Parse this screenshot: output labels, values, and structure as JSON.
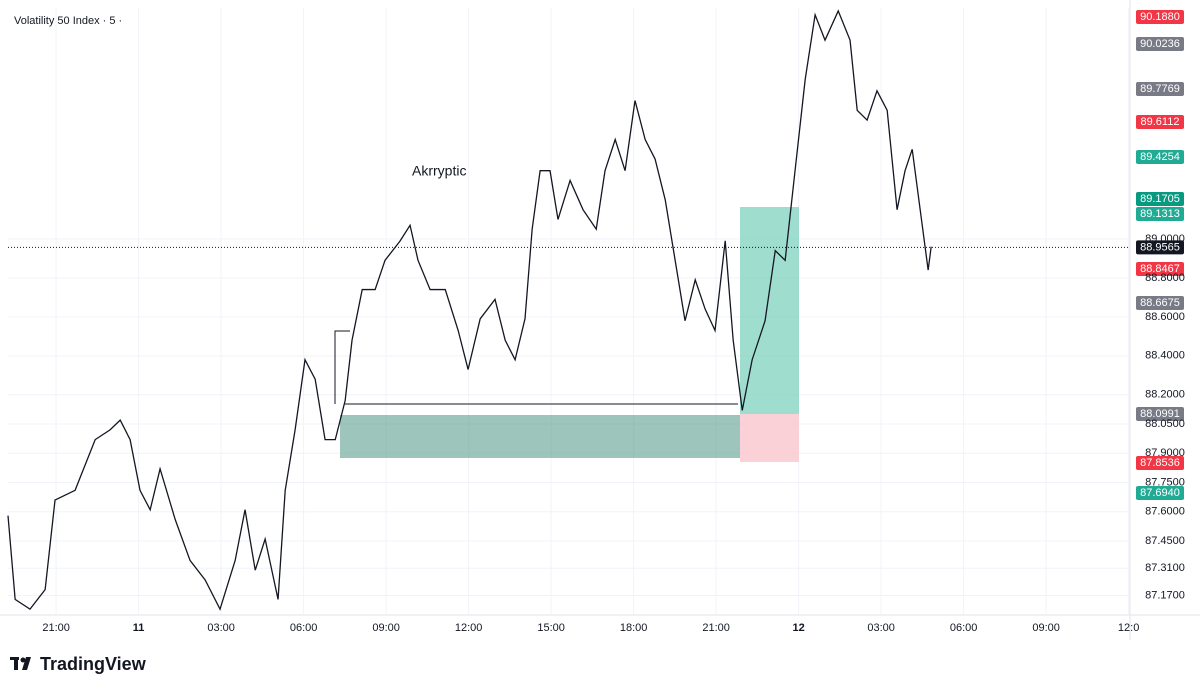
{
  "chart_data": {
    "type": "line",
    "title": "Volatility 50 Index · 5 ·",
    "annotation": "Akrryptic",
    "brand": "TradingView",
    "color": "#131722",
    "grid": true,
    "x": [
      -1.75,
      -1.49,
      -0.95,
      -0.4,
      -0.04,
      0.69,
      1.42,
      1.96,
      2.33,
      2.69,
      3.05,
      3.42,
      3.78,
      4.33,
      4.87,
      5.42,
      5.96,
      6.51,
      6.87,
      7.24,
      7.6,
      8.07,
      8.33,
      8.69,
      9.05,
      9.42,
      9.78,
      10.15,
      10.51,
      10.76,
      11.13,
      11.6,
      11.96,
      12.51,
      12.87,
      13.16,
      13.6,
      14.15,
      14.62,
      14.98,
      15.42,
      15.96,
      16.33,
      16.69,
      17.05,
      17.31,
      17.6,
      17.96,
      18.25,
      18.69,
      19.16,
      19.64,
      19.96,
      20.33,
      20.69,
      21.05,
      21.42,
      21.78,
      22.15,
      22.51,
      22.87,
      23.24,
      23.6,
      23.96,
      24.33,
      24.62,
      24.95,
      25.31,
      25.78,
      26.15,
      26.51,
      26.87,
      27.24,
      27.6,
      27.96,
      28.44,
      28.87,
      29.13,
      29.49,
      29.85,
      30.22,
      30.58,
      30.87,
      31.13,
      31.42,
      31.71,
      31.82
    ],
    "series": [
      {
        "name": "Volatility 50 Index",
        "color": "#131722",
        "values": [
          87.58,
          87.15,
          87.1,
          87.2,
          87.66,
          87.71,
          87.97,
          88.02,
          88.07,
          87.97,
          87.71,
          87.61,
          87.82,
          87.56,
          87.35,
          87.25,
          87.1,
          87.35,
          87.61,
          87.3,
          87.46,
          87.15,
          87.71,
          88.02,
          88.38,
          88.28,
          87.97,
          87.97,
          88.17,
          88.48,
          88.74,
          88.74,
          88.89,
          88.99,
          89.07,
          88.89,
          88.74,
          88.74,
          88.53,
          88.33,
          88.59,
          88.69,
          88.48,
          88.38,
          88.59,
          89.05,
          89.35,
          89.35,
          89.1,
          89.3,
          89.15,
          89.05,
          89.35,
          89.51,
          89.35,
          89.71,
          89.51,
          89.41,
          89.2,
          88.89,
          88.58,
          88.79,
          88.64,
          88.53,
          88.99,
          88.48,
          88.12,
          88.38,
          88.58,
          88.94,
          88.89,
          89.35,
          89.82,
          90.15,
          90.02,
          90.17,
          90.02,
          89.66,
          89.61,
          89.76,
          89.66,
          89.15,
          89.35,
          89.46,
          89.15,
          88.84,
          88.96
        ]
      }
    ],
    "xlim": [
      -1.75,
      39.05
    ],
    "xticks": [
      {
        "value": 0,
        "label": "21:00"
      },
      {
        "value": 3,
        "label": "11"
      },
      {
        "value": 6,
        "label": "03:00"
      },
      {
        "value": 9,
        "label": "06:00"
      },
      {
        "value": 12,
        "label": "09:00"
      },
      {
        "value": 15,
        "label": "12:00"
      },
      {
        "value": 18,
        "label": "15:00"
      },
      {
        "value": 21,
        "label": "18:00"
      },
      {
        "value": 24,
        "label": "21:00"
      },
      {
        "value": 27,
        "label": "12"
      },
      {
        "value": 30,
        "label": "03:00"
      },
      {
        "value": 33,
        "label": "06:00"
      },
      {
        "value": 36,
        "label": "09:00"
      },
      {
        "value": 39,
        "label": "12:0"
      }
    ],
    "ylim": [
      87.07,
      90.185
    ],
    "yticks": [
      {
        "value": 89,
        "label": "89.0000"
      },
      {
        "value": 88.8,
        "label": "88.8000"
      },
      {
        "value": 88.6,
        "label": "88.6000"
      },
      {
        "value": 88.4,
        "label": "88.4000"
      },
      {
        "value": 88.2,
        "label": "88.2000"
      },
      {
        "value": 88.05,
        "label": "88.0500"
      },
      {
        "value": 87.9,
        "label": "87.9000"
      },
      {
        "value": 87.75,
        "label": "87.7500"
      },
      {
        "value": 87.6,
        "label": "87.6000"
      },
      {
        "value": 87.45,
        "label": "87.4500"
      },
      {
        "value": 87.31,
        "label": "87.3100"
      },
      {
        "value": 87.17,
        "label": "87.1700"
      }
    ],
    "current_price": {
      "value": 88.9565,
      "label": "88.9565"
    },
    "price_tags": [
      {
        "value": 90.188,
        "label": "90.1880",
        "color": "#f23645"
      },
      {
        "value": 90.0236,
        "label": "90.0236",
        "color": "#787b86"
      },
      {
        "value": 89.7769,
        "label": "89.7769",
        "color": "#787b86"
      },
      {
        "value": 89.6112,
        "label": "89.6112",
        "color": "#f23645"
      },
      {
        "value": 89.4254,
        "label": "89.4254",
        "color": "#22ab94"
      },
      {
        "value": 89.1705,
        "label": "89.1705",
        "color": "#089981"
      },
      {
        "value": 89.1313,
        "label": "89.1313",
        "color": "#22ab94"
      },
      {
        "value": 88.8467,
        "label": "88.8467",
        "color": "#f23645"
      },
      {
        "value": 88.6675,
        "label": "88.6675",
        "color": "#787b86"
      },
      {
        "value": 88.0991,
        "label": "88.0991",
        "color": "#787b86"
      },
      {
        "value": 87.8536,
        "label": "87.8536",
        "color": "#f23645"
      },
      {
        "value": 87.694,
        "label": "87.6940",
        "color": "#22ab94"
      }
    ]
  }
}
